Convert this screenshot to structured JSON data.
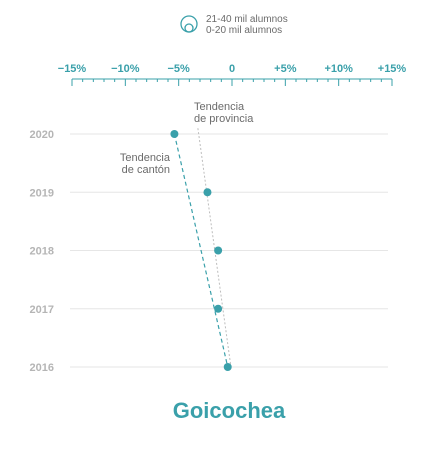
{
  "legend": {
    "items": [
      "21-40 mil alumnos",
      "0-20 mil alumnos"
    ],
    "icon": "nested-circles-icon"
  },
  "title": "Goicochea",
  "annotations": {
    "provincia": [
      "Tendencia",
      "de provincia"
    ],
    "canton": [
      "Tendencia",
      "de cantón"
    ]
  },
  "colors": {
    "accent": "#3aa0aa",
    "grid": "#e6e6e6",
    "tick_label": "#3aa0aa",
    "year_label": "#b5b5b5",
    "provincia_line": "#bdbdbd"
  },
  "chart_data": {
    "type": "scatter",
    "x_ticks": [
      -15,
      -10,
      -5,
      0,
      5,
      10,
      15
    ],
    "x_tick_labels": [
      "−15%",
      "−10%",
      "−5%",
      "0",
      "+5%",
      "+10%",
      "+15%"
    ],
    "xlim": [
      -15,
      15
    ],
    "years": [
      2020,
      2019,
      2018,
      2017,
      2016
    ],
    "series": [
      {
        "values": [
          -5.4,
          -2.3,
          -1.3,
          -1.3,
          -0.4
        ]
      }
    ],
    "trend_canton": {
      "start": [
        -5.4,
        2020
      ],
      "end": [
        -0.4,
        2016
      ]
    },
    "trend_provincia": {
      "start": [
        -3.2,
        2020.1
      ],
      "end": [
        -0.1,
        2016
      ]
    },
    "grid": true
  }
}
